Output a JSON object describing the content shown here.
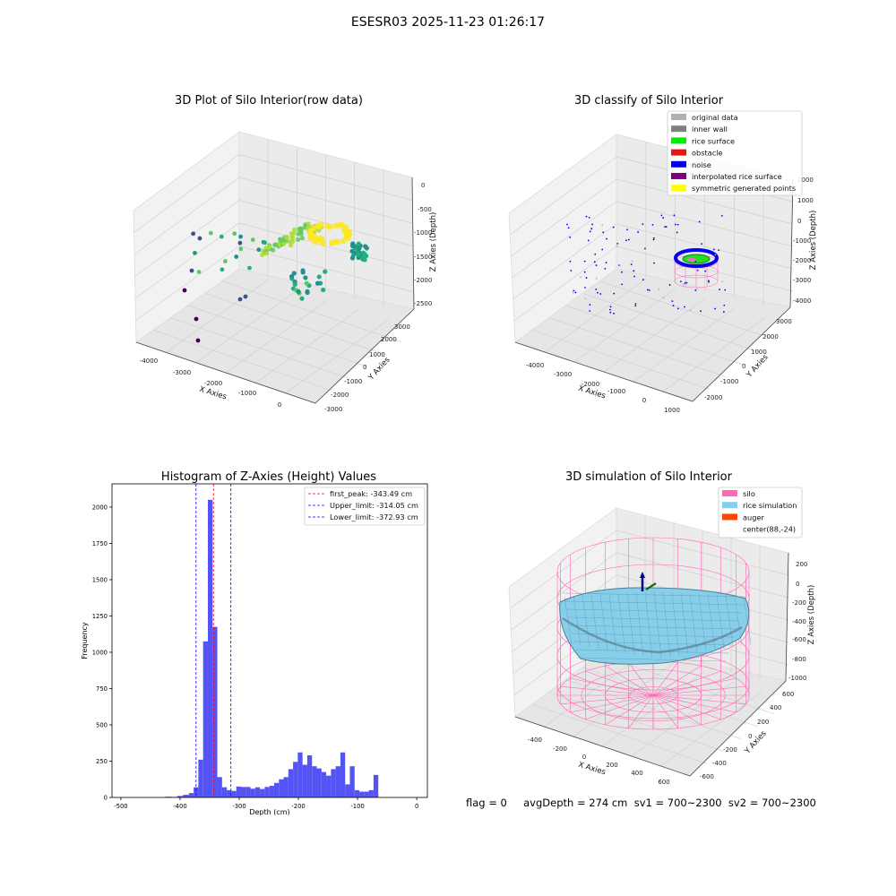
{
  "page": {
    "title": "ESESR03 2025-11-23 01:26:17"
  },
  "status": {
    "text": "flag = 0     avgDepth = 274 cm  sv1 = 700~2300  sv2 = 700~2300"
  },
  "chart_data": [
    {
      "type": "scatter",
      "projection": "3d",
      "title": "3D Plot of Silo Interior(row data)",
      "xlabel": "X Axies",
      "ylabel": "Y Axies",
      "zlabel": "Z Axies (Depth)",
      "x_ticks": [
        "-4000",
        "-3000",
        "-2000",
        "-1000",
        "0"
      ],
      "y_ticks": [
        "-3000",
        "-2000",
        "-1000",
        "0",
        "1000",
        "2000",
        "3000"
      ],
      "z_ticks": [
        "0",
        "-500",
        "-1000",
        "-1500",
        "-2000",
        "-2500"
      ],
      "grid": true,
      "colormap": "viridis"
    },
    {
      "type": "scatter",
      "projection": "3d",
      "title": "3D classify of Silo Interior",
      "xlabel": "X Axies",
      "ylabel": "Y Axies",
      "zlabel": "Z Axies (Depth)",
      "x_ticks": [
        "-4000",
        "-3000",
        "-2000",
        "-1000",
        "0",
        "1000"
      ],
      "y_ticks": [
        "-2000",
        "-1000",
        "0",
        "1000",
        "2000",
        "3000"
      ],
      "z_ticks": [
        "2000",
        "1000",
        "0",
        "-1000",
        "-2000",
        "-3000",
        "-4000"
      ],
      "grid": true,
      "legend_position": "top-right",
      "legend": [
        {
          "label": "original data",
          "color": "#b0b0b0"
        },
        {
          "label": "inner wall",
          "color": "#808080"
        },
        {
          "label": "rice surface",
          "color": "#00ee00"
        },
        {
          "label": "obstacle",
          "color": "#ee1111"
        },
        {
          "label": "noise",
          "color": "#0000ee"
        },
        {
          "label": "interpolated rice surface",
          "color": "#800080"
        },
        {
          "label": "symmetric generated points",
          "color": "#ffff00"
        }
      ]
    },
    {
      "type": "bar",
      "subtype": "histogram",
      "title": "Histogram of Z-Axies (Height) Values",
      "xlabel": "Depth (cm)",
      "ylabel": "Frequency",
      "xlim": [
        -515,
        18
      ],
      "ylim": [
        0,
        2160
      ],
      "x_ticks": [
        -500,
        -400,
        -300,
        -200,
        -100,
        0
      ],
      "y_ticks": [
        0,
        250,
        500,
        750,
        1000,
        1250,
        1500,
        1750,
        2000
      ],
      "bar_color": "#4b4bf5",
      "bins": [
        {
          "left": -425,
          "right": -415,
          "value": 5
        },
        {
          "left": -415,
          "right": -405,
          "value": 3
        },
        {
          "left": -405,
          "right": -395,
          "value": 10
        },
        {
          "left": -395,
          "right": -385,
          "value": 18
        },
        {
          "left": -385,
          "right": -377,
          "value": 30
        },
        {
          "left": -377,
          "right": -369,
          "value": 70
        },
        {
          "left": -369,
          "right": -361,
          "value": 260
        },
        {
          "left": -361,
          "right": -353,
          "value": 1075
        },
        {
          "left": -353,
          "right": -345,
          "value": 2050
        },
        {
          "left": -345,
          "right": -337,
          "value": 1175
        },
        {
          "left": -337,
          "right": -329,
          "value": 140
        },
        {
          "left": -329,
          "right": -321,
          "value": 70
        },
        {
          "left": -321,
          "right": -313,
          "value": 50
        },
        {
          "left": -313,
          "right": -305,
          "value": 45
        },
        {
          "left": -305,
          "right": -297,
          "value": 75
        },
        {
          "left": -297,
          "right": -289,
          "value": 72
        },
        {
          "left": -289,
          "right": -281,
          "value": 72
        },
        {
          "left": -281,
          "right": -273,
          "value": 60
        },
        {
          "left": -273,
          "right": -265,
          "value": 70
        },
        {
          "left": -265,
          "right": -257,
          "value": 58
        },
        {
          "left": -257,
          "right": -249,
          "value": 72
        },
        {
          "left": -249,
          "right": -241,
          "value": 80
        },
        {
          "left": -241,
          "right": -233,
          "value": 100
        },
        {
          "left": -233,
          "right": -225,
          "value": 125
        },
        {
          "left": -225,
          "right": -217,
          "value": 140
        },
        {
          "left": -217,
          "right": -209,
          "value": 195
        },
        {
          "left": -209,
          "right": -201,
          "value": 245
        },
        {
          "left": -201,
          "right": -193,
          "value": 310
        },
        {
          "left": -193,
          "right": -185,
          "value": 225
        },
        {
          "left": -185,
          "right": -177,
          "value": 290
        },
        {
          "left": -177,
          "right": -169,
          "value": 215
        },
        {
          "left": -169,
          "right": -161,
          "value": 200
        },
        {
          "left": -161,
          "right": -153,
          "value": 175
        },
        {
          "left": -153,
          "right": -145,
          "value": 150
        },
        {
          "left": -145,
          "right": -137,
          "value": 195
        },
        {
          "left": -137,
          "right": -129,
          "value": 215
        },
        {
          "left": -129,
          "right": -121,
          "value": 310
        },
        {
          "left": -121,
          "right": -113,
          "value": 90
        },
        {
          "left": -113,
          "right": -105,
          "value": 215
        },
        {
          "left": -105,
          "right": -97,
          "value": 50
        },
        {
          "left": -97,
          "right": -89,
          "value": 40
        },
        {
          "left": -89,
          "right": -81,
          "value": 40
        },
        {
          "left": -81,
          "right": -73,
          "value": 50
        },
        {
          "left": -73,
          "right": -65,
          "value": 155
        }
      ],
      "vlines": [
        {
          "label": "first_peak: -343.49 cm",
          "value": -343.49,
          "color": "#ff0000"
        },
        {
          "label": "Upper_limit: -314.05 cm",
          "value": -314.05,
          "color": "#0000ff"
        },
        {
          "label": "Lower_limit: -372.93 cm",
          "value": -372.93,
          "color": "#0000ff"
        }
      ],
      "legend_position": "top-right"
    },
    {
      "type": "surface",
      "projection": "3d",
      "title": "3D simulation of Silo Interior",
      "xlabel": "X Axies",
      "ylabel": "Y Axies",
      "zlabel": "Z Axies (Depth)",
      "x_ticks": [
        "-400",
        "-200",
        "0",
        "200",
        "400",
        "600"
      ],
      "y_ticks": [
        "-600",
        "-400",
        "-200",
        "0",
        "200",
        "400",
        "600"
      ],
      "z_ticks": [
        "200",
        "0",
        "-200",
        "-400",
        "-600",
        "-800",
        "-1000"
      ],
      "grid": true,
      "legend_position": "top-right",
      "legend": [
        {
          "label": "silo",
          "color": "#ff69b4"
        },
        {
          "label": "rice simulation",
          "color": "#87ceeb"
        },
        {
          "label": "auger",
          "color": "#ff4500"
        },
        {
          "label": "center(88,-24)",
          "color": ""
        }
      ]
    }
  ]
}
